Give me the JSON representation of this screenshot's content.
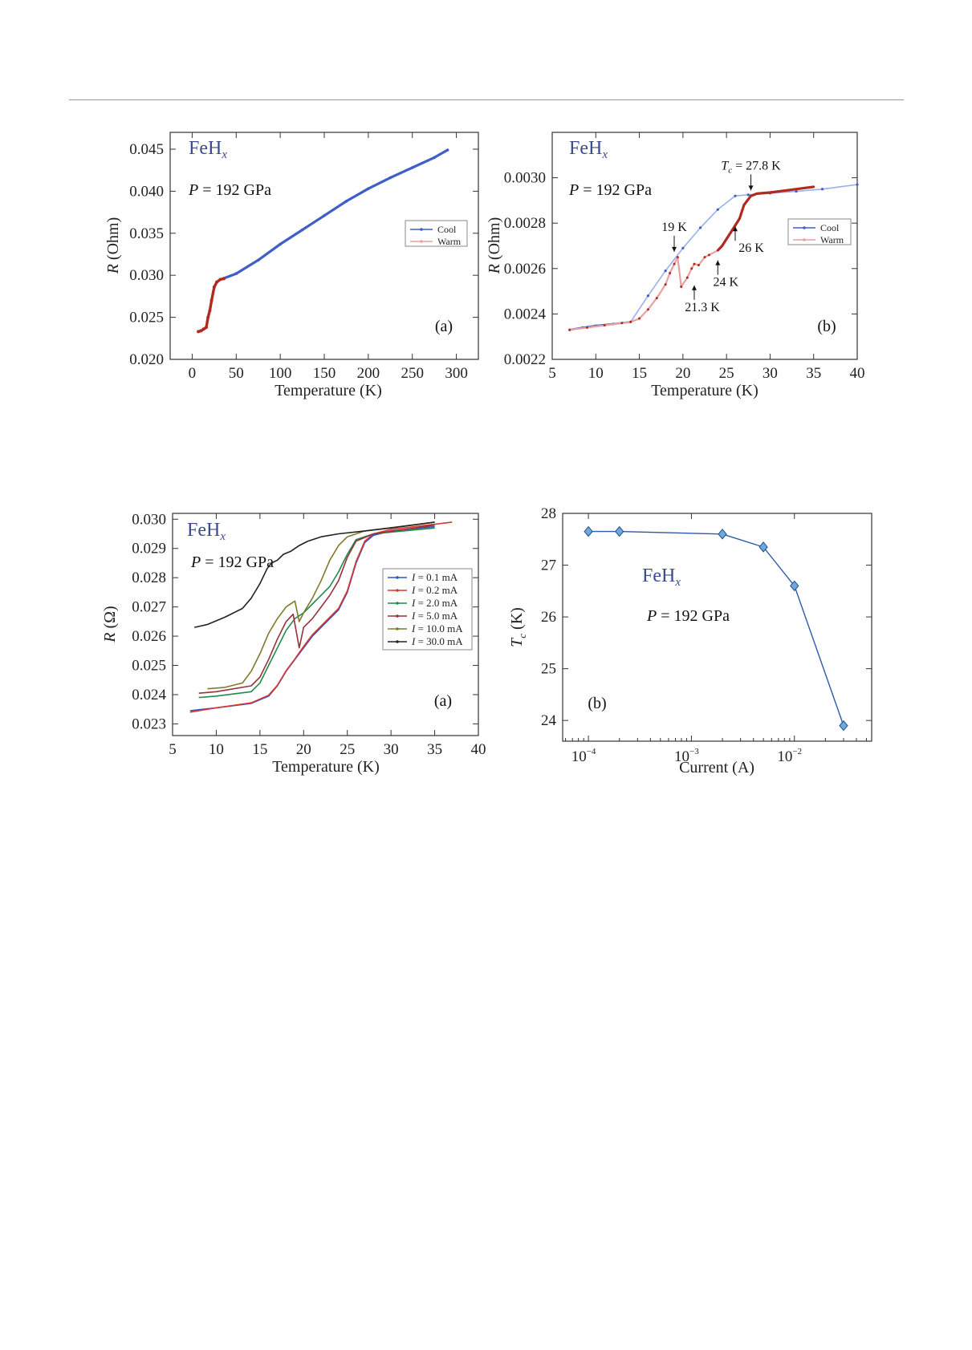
{
  "colors": {
    "blue": "#3f5fc7",
    "red": "#b02a1f",
    "lightblue": "#9ab0ee",
    "pink": "#e8a0a0",
    "brand": "#3c4a8f",
    "marker": "#6fa8dc"
  },
  "chart_data": [
    {
      "id": "fig1a",
      "type": "line",
      "title": "",
      "brand": {
        "main": "FeH",
        "sub": "x"
      },
      "pressure": {
        "p": "P",
        "rest": " = 192 GPa"
      },
      "panel_label": "(a)",
      "xlabel": "Temperature (K)",
      "ylabel": {
        "r": "R",
        "rest": " (Ohm)"
      },
      "xlim": [
        -25,
        325
      ],
      "ylim": [
        0.02,
        0.047
      ],
      "xticks": [
        0,
        50,
        100,
        150,
        200,
        250,
        300
      ],
      "xtick_labels": [
        "0",
        "50",
        "100",
        "150",
        "200",
        "250",
        "300"
      ],
      "yticks": [
        0.02,
        0.025,
        0.03,
        0.035,
        0.04,
        0.045
      ],
      "ytick_labels": [
        "0.020",
        "0.025",
        "0.030",
        "0.035",
        "0.040",
        "0.045"
      ],
      "legend": [
        "Cool",
        "Warm"
      ],
      "series": [
        {
          "name": "Cool",
          "color": "blue",
          "x": [
            35,
            50,
            75,
            100,
            125,
            150,
            175,
            200,
            225,
            250,
            275,
            290
          ],
          "y": [
            0.0296,
            0.0302,
            0.0318,
            0.0337,
            0.0354,
            0.0371,
            0.0388,
            0.0403,
            0.0416,
            0.0428,
            0.044,
            0.0449
          ]
        },
        {
          "name": "Warm",
          "color": "red",
          "x": [
            7,
            10,
            13,
            16,
            18,
            20,
            22,
            25,
            28,
            32,
            36
          ],
          "y": [
            0.0233,
            0.0234,
            0.0236,
            0.0238,
            0.025,
            0.0258,
            0.027,
            0.0286,
            0.0292,
            0.0295,
            0.0296
          ]
        }
      ]
    },
    {
      "id": "fig1b",
      "type": "line",
      "title": "",
      "brand": {
        "main": "FeH",
        "sub": "x"
      },
      "pressure": {
        "p": "P",
        "rest": " = 192 GPa"
      },
      "panel_label": "(b)",
      "xlabel": "Temperature (K)",
      "ylabel": {
        "r": "R",
        "rest": " (Ohm)"
      },
      "xlim": [
        5,
        40
      ],
      "ylim": [
        0.0022,
        0.0032
      ],
      "xticks": [
        5,
        10,
        15,
        20,
        25,
        30,
        35,
        40
      ],
      "xtick_labels": [
        "5",
        "10",
        "15",
        "20",
        "25",
        "30",
        "35",
        "40"
      ],
      "yticks": [
        0.0022,
        0.0024,
        0.0026,
        0.0028,
        0.003
      ],
      "ytick_labels": [
        "0.0022",
        "0.0024",
        "0.0026",
        "0.0028",
        "0.0030"
      ],
      "legend": [
        "Cool",
        "Warm"
      ],
      "annotations": [
        {
          "text": "19 K",
          "x": 19,
          "y": 0.00266,
          "pos": "above"
        },
        {
          "text": "21.3 K",
          "x": 21.3,
          "y": 0.00254,
          "pos": "below"
        },
        {
          "text": "24 K",
          "x": 24,
          "y": 0.00265,
          "pos": "below"
        },
        {
          "text": "26 K",
          "x": 26,
          "y": 0.0028,
          "pos": "right"
        },
        {
          "text": "Tc = 27.8 K",
          "x": 27.8,
          "y": 0.00293,
          "pos": "above"
        }
      ],
      "series": [
        {
          "name": "Cool",
          "color": "blue",
          "x": [
            7,
            8.5,
            10,
            12,
            14,
            16,
            18,
            20,
            22,
            24,
            26,
            27.5,
            30,
            33,
            36,
            40
          ],
          "y": [
            0.00233,
            0.00234,
            0.002348,
            0.002356,
            0.002365,
            0.00248,
            0.00259,
            0.00269,
            0.00278,
            0.00286,
            0.00292,
            0.002925,
            0.002932,
            0.00294,
            0.00295,
            0.00297
          ]
        },
        {
          "name": "Warm",
          "color": "red",
          "x": [
            7,
            9,
            11,
            13,
            14,
            15,
            16,
            17,
            18,
            18.5,
            19,
            19.4,
            19.8,
            20.5,
            21,
            21.3,
            21.8,
            22.5,
            23,
            24,
            24.5,
            25,
            25.5,
            26,
            26.5,
            27,
            27.8,
            28.5,
            30,
            32,
            34,
            35
          ],
          "y": [
            0.00233,
            0.00234,
            0.00235,
            0.00236,
            0.002365,
            0.00238,
            0.00242,
            0.00247,
            0.00253,
            0.00258,
            0.00262,
            0.00265,
            0.00252,
            0.00256,
            0.0026,
            0.00262,
            0.002615,
            0.00265,
            0.00266,
            0.00268,
            0.0027,
            0.00273,
            0.00276,
            0.00279,
            0.00282,
            0.00288,
            0.00292,
            0.00293,
            0.002935,
            0.002945,
            0.002955,
            0.00296
          ]
        }
      ]
    },
    {
      "id": "fig2a",
      "type": "line",
      "title": "",
      "brand": {
        "main": "FeH",
        "sub": "x"
      },
      "pressure": {
        "p": "P",
        "rest": " = 192 GPa"
      },
      "panel_label": "(a)",
      "xlabel": "Temperature (K)",
      "ylabel": {
        "r": "R",
        "rest": " (Ω)"
      },
      "xlim": [
        5,
        40
      ],
      "ylim": [
        0.0226,
        0.0302
      ],
      "xticks": [
        5,
        10,
        15,
        20,
        25,
        30,
        35,
        40
      ],
      "xtick_labels": [
        "5",
        "10",
        "15",
        "20",
        "25",
        "30",
        "35",
        "40"
      ],
      "yticks": [
        0.023,
        0.024,
        0.025,
        0.026,
        0.027,
        0.028,
        0.029,
        0.03
      ],
      "ytick_labels": [
        "0.023",
        "0.024",
        "0.025",
        "0.026",
        "0.027",
        "0.028",
        "0.029",
        "0.030"
      ],
      "legend": [
        "I = 0.1 mA",
        "I = 0.2 mA",
        "I = 2.0 mA",
        "I = 5.0 mA",
        "I = 10.0 mA",
        "I = 30.0 mA"
      ],
      "series": [
        {
          "name": "I = 0.1 mA",
          "color": "#2f55c9",
          "x": [
            7,
            10,
            14,
            16,
            17,
            18,
            19,
            20,
            21,
            22,
            23,
            24,
            25,
            26,
            27,
            28,
            30,
            35
          ],
          "y": [
            0.02345,
            0.02355,
            0.0237,
            0.02395,
            0.0243,
            0.0248,
            0.0252,
            0.0256,
            0.026,
            0.0263,
            0.0266,
            0.0269,
            0.0275,
            0.0285,
            0.0292,
            0.02945,
            0.0296,
            0.02975
          ]
        },
        {
          "name": "I = 0.2 mA",
          "color": "#d7372e",
          "x": [
            7,
            10,
            14,
            16,
            17,
            18,
            19,
            20,
            21,
            22,
            23,
            24,
            25,
            26,
            27,
            28,
            30,
            37
          ],
          "y": [
            0.0234,
            0.02355,
            0.02372,
            0.02398,
            0.02432,
            0.02482,
            0.02522,
            0.02565,
            0.02605,
            0.02635,
            0.02665,
            0.02695,
            0.02755,
            0.02855,
            0.02925,
            0.0295,
            0.02965,
            0.0299
          ]
        },
        {
          "name": "I = 2.0 mA",
          "color": "#1f8a4a",
          "x": [
            8,
            10,
            14,
            15,
            16,
            17,
            18,
            19,
            20,
            21,
            22,
            23,
            24,
            25,
            26,
            28,
            35
          ],
          "y": [
            0.0239,
            0.02395,
            0.0241,
            0.0244,
            0.025,
            0.0256,
            0.0262,
            0.0266,
            0.0268,
            0.0271,
            0.0274,
            0.0277,
            0.0282,
            0.0288,
            0.0293,
            0.0295,
            0.0297
          ]
        },
        {
          "name": "I = 5.0 mA",
          "color": "#9b2f3c",
          "x": [
            8,
            10,
            14,
            15,
            16,
            17,
            18,
            18.8,
            19.5,
            20,
            21,
            22,
            23,
            24,
            25,
            26,
            28,
            35
          ],
          "y": [
            0.02405,
            0.0241,
            0.0243,
            0.0246,
            0.0252,
            0.0259,
            0.0265,
            0.02675,
            0.0256,
            0.0263,
            0.0266,
            0.027,
            0.0274,
            0.0279,
            0.0287,
            0.02925,
            0.0295,
            0.0298
          ]
        },
        {
          "name": "I = 10.0 mA",
          "color": "#7f7a2a",
          "x": [
            9,
            11,
            13,
            14,
            15,
            16,
            17,
            18,
            19,
            19.5,
            20,
            21,
            22,
            23,
            24,
            25,
            27,
            35
          ],
          "y": [
            0.0242,
            0.02425,
            0.0244,
            0.0248,
            0.0254,
            0.0261,
            0.0266,
            0.027,
            0.0272,
            0.0265,
            0.0268,
            0.0273,
            0.0279,
            0.0286,
            0.0291,
            0.0294,
            0.0296,
            0.0299
          ]
        },
        {
          "name": "I = 30.0 mA",
          "color": "#222222",
          "x": [
            7.5,
            9,
            11,
            13,
            14,
            15,
            15.8,
            16.3,
            17,
            17.7,
            18.5,
            19.5,
            20.5,
            22,
            24,
            27,
            30,
            35
          ],
          "y": [
            0.0263,
            0.0264,
            0.02665,
            0.02695,
            0.0273,
            0.0278,
            0.0283,
            0.0285,
            0.0286,
            0.0288,
            0.0289,
            0.0291,
            0.02925,
            0.0294,
            0.0295,
            0.0296,
            0.0297,
            0.0299
          ]
        }
      ]
    },
    {
      "id": "fig2b",
      "type": "line",
      "title": "",
      "brand": {
        "main": "FeH",
        "sub": "x"
      },
      "pressure": {
        "p": "P",
        "rest": " = 192 GPa"
      },
      "panel_label": "(b)",
      "xlabel": "Current (A)",
      "ylabel": {
        "r": "T",
        "sub": "c",
        "rest": " (K)"
      },
      "xscale": "log",
      "xlim_log10": [
        -4.25,
        -1.25
      ],
      "ylim": [
        23.6,
        28
      ],
      "xticks_log10": [
        -4,
        -3,
        -2
      ],
      "xtick_labels": [
        {
          "base": "10",
          "exp": "−4"
        },
        {
          "base": "10",
          "exp": "−3"
        },
        {
          "base": "10",
          "exp": "−2"
        }
      ],
      "yticks": [
        24,
        25,
        26,
        27,
        28
      ],
      "ytick_labels": [
        "24",
        "25",
        "26",
        "27",
        "28"
      ],
      "series": [
        {
          "name": "Tc",
          "color": "#2e59a8",
          "x": [
            0.0001,
            0.0002,
            0.002,
            0.005,
            0.01,
            0.03
          ],
          "y": [
            27.65,
            27.65,
            27.6,
            27.35,
            26.6,
            23.9
          ]
        }
      ]
    }
  ]
}
